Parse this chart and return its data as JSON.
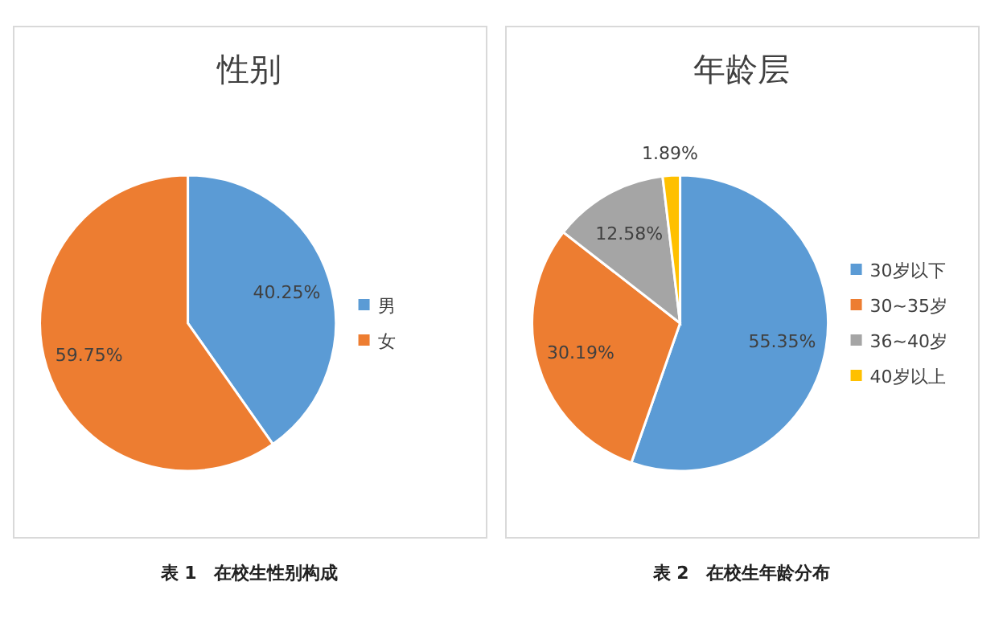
{
  "chart_data": [
    {
      "type": "pie",
      "title": "性别",
      "categories": [
        "男",
        "女"
      ],
      "values": [
        40.25,
        59.75
      ],
      "value_labels": [
        "40.25%",
        "59.75%"
      ],
      "colors": [
        "#5b9bd5",
        "#ed7d31"
      ],
      "legend": "right",
      "annotations": [
        "表 1　在校生性别构成"
      ]
    },
    {
      "type": "pie",
      "title": "年龄层",
      "categories": [
        "30岁以下",
        "30~35岁",
        "36~40岁",
        "40岁以上"
      ],
      "values": [
        55.35,
        30.19,
        12.58,
        1.89
      ],
      "value_labels": [
        "55.35%",
        "30.19%",
        "12.58%",
        "1.89%"
      ],
      "colors": [
        "#5b9bd5",
        "#ed7d31",
        "#a5a5a5",
        "#ffc000"
      ],
      "legend": "right",
      "annotations": [
        "表 2　在校生年龄分布"
      ]
    }
  ]
}
